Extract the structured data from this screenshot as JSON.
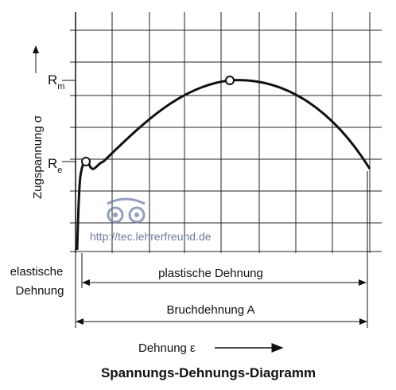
{
  "diagram": {
    "title": "Spannungs-Dehnungs-Diagramm",
    "y_axis_label": "Zugspannung σ",
    "x_axis_label": "Dehnung ε",
    "points": [
      {
        "symbol": "R",
        "subscript": "m"
      },
      {
        "symbol": "R",
        "subscript": "e"
      }
    ],
    "elastic_label": [
      "elastische",
      "Dehnung"
    ],
    "plastic_label": "plastische Dehnung",
    "fracture_label": "Bruchdehnung A",
    "watermark": "http://tec.lehrerfreund.de"
  }
}
